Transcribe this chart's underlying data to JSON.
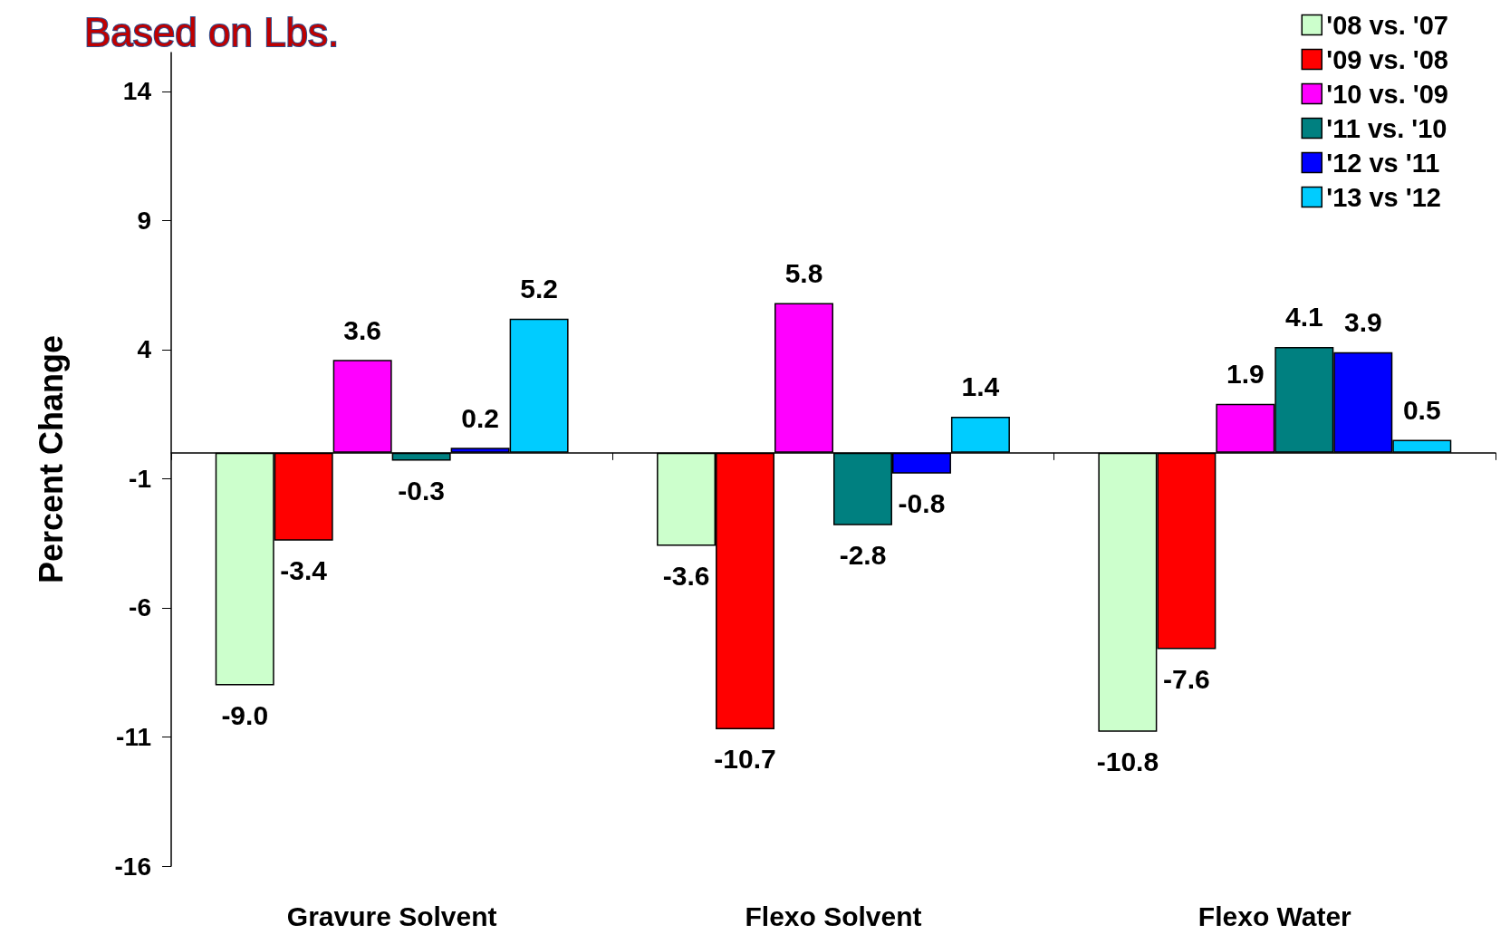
{
  "chart_data": {
    "type": "bar",
    "title": "Based on Lbs.",
    "ylabel": "Percent Change",
    "categories": [
      "Gravure Solvent",
      "Flexo Solvent",
      "Flexo Water"
    ],
    "series": [
      {
        "name": "'08 vs. '07",
        "color": "#ccffcc",
        "values": [
          -9.0,
          -3.6,
          -10.8
        ],
        "value_labels": [
          "-9.0",
          "-3.6",
          "-10.8"
        ]
      },
      {
        "name": "'09 vs. '08",
        "color": "#ff0000",
        "values": [
          -3.4,
          -10.7,
          -7.6
        ],
        "value_labels": [
          "-3.4",
          "-10.7",
          "-7.6"
        ]
      },
      {
        "name": "'10 vs. '09",
        "color": "#ff00ff",
        "values": [
          3.6,
          5.8,
          1.9
        ],
        "value_labels": [
          "3.6",
          "5.8",
          "1.9"
        ]
      },
      {
        "name": "'11 vs. '10",
        "color": "#008080",
        "values": [
          -0.3,
          -2.8,
          4.1
        ],
        "value_labels": [
          "-0.3",
          "-2.8",
          "4.1"
        ]
      },
      {
        "name": "'12 vs '11",
        "color": "#0000ff",
        "values": [
          0.2,
          -0.8,
          3.9
        ],
        "value_labels": [
          "0.2",
          "-0.8",
          "3.9"
        ]
      },
      {
        "name": "'13 vs '12",
        "color": "#00ccff",
        "values": [
          5.2,
          1.4,
          0.5
        ],
        "value_labels": [
          "5.2",
          "1.4",
          "0.5"
        ]
      }
    ],
    "ylim": [
      -16,
      15.5
    ],
    "yticks": [
      -16,
      -11,
      -6,
      -1,
      4,
      9,
      14
    ],
    "grid": false,
    "legend": "top right"
  }
}
